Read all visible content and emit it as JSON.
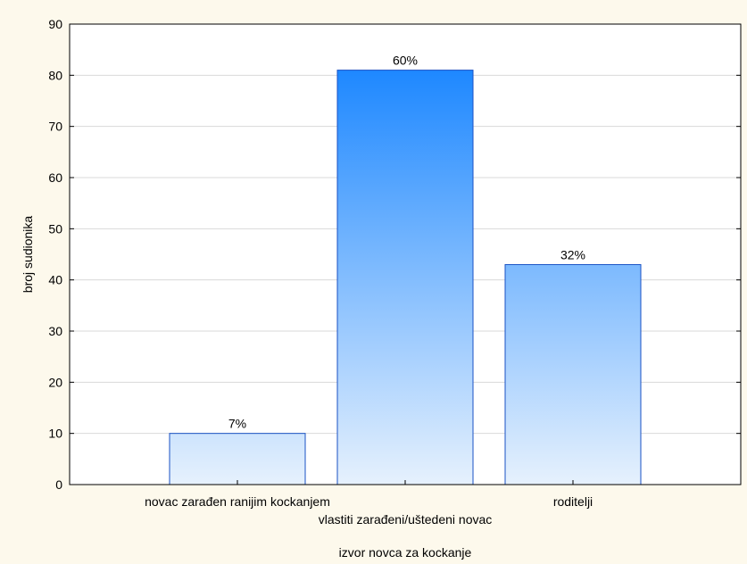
{
  "chart_data": {
    "type": "bar",
    "categories": [
      "novac zarađen ranijim kockanjem",
      "vlastiti zarađeni/uštedeni novac",
      "roditelji"
    ],
    "values": [
      10,
      81,
      43
    ],
    "data_labels": [
      "7%",
      "60%",
      "32%"
    ],
    "xlabel": "izvor novca za kockanje",
    "ylabel": "broj sudionika",
    "ylim": [
      0,
      90
    ],
    "yticks": [
      0,
      10,
      20,
      30,
      40,
      50,
      60,
      70,
      80,
      90
    ],
    "grid": true,
    "colors": {
      "bar_top": "#1e88ff",
      "bar_bottom": "#e6f1fd",
      "bar_border": "#1a52c4",
      "plot_background": "#ffffff",
      "page_background": "#fdf9ec",
      "grid": "#d9d9d9"
    }
  }
}
